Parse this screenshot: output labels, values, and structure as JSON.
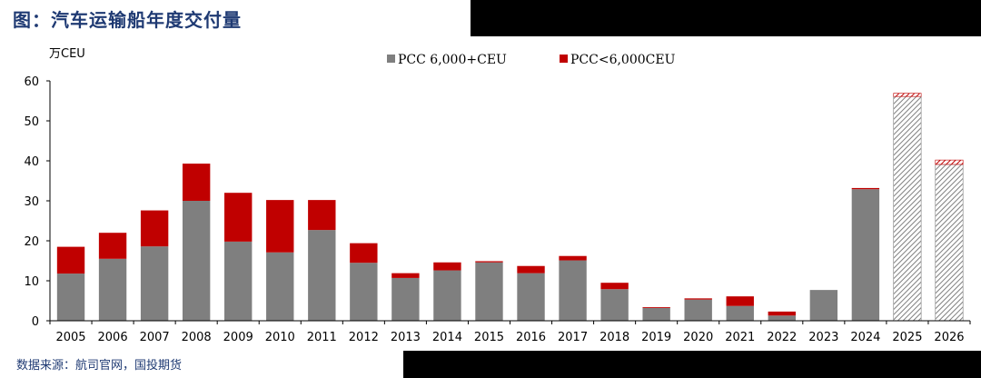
{
  "title": "图：汽车运输船年度交付量",
  "source": "数据来源：航司官网，国投期货",
  "colors": {
    "series1": "#7f7f7f",
    "series2": "#c00000",
    "axis": "#000000",
    "text": "#000000",
    "title_text": "#1f3a73",
    "hatch": "#7f7f7f"
  },
  "chart_data": {
    "type": "bar",
    "stacked": true,
    "ylabel": "万CEU",
    "ylim": [
      0,
      60
    ],
    "yticks": [
      0,
      10,
      20,
      30,
      40,
      50,
      60
    ],
    "categories": [
      "2005",
      "2006",
      "2007",
      "2008",
      "2009",
      "2010",
      "2011",
      "2012",
      "2013",
      "2014",
      "2015",
      "2016",
      "2017",
      "2018",
      "2019",
      "2020",
      "2021",
      "2022",
      "2023",
      "2024",
      "2025",
      "2026"
    ],
    "forecast_categories": [
      "2025",
      "2026"
    ],
    "legend_position": "top",
    "grid": false,
    "series": [
      {
        "name": "PCC 6,000+CEU",
        "values": [
          11.8,
          15.5,
          18.6,
          30.0,
          19.8,
          17.1,
          22.7,
          14.5,
          10.7,
          12.6,
          14.6,
          11.9,
          15.1,
          7.9,
          3.2,
          5.3,
          3.7,
          1.3,
          7.7,
          32.9,
          56.1,
          39.1
        ]
      },
      {
        "name": "PCC<6,000CEU",
        "values": [
          6.7,
          6.5,
          9.0,
          9.3,
          12.2,
          13.1,
          7.5,
          4.9,
          1.2,
          2.0,
          0.3,
          1.8,
          1.1,
          1.6,
          0.2,
          0.3,
          2.4,
          1.0,
          0.0,
          0.3,
          0.8,
          1.1
        ]
      }
    ]
  }
}
